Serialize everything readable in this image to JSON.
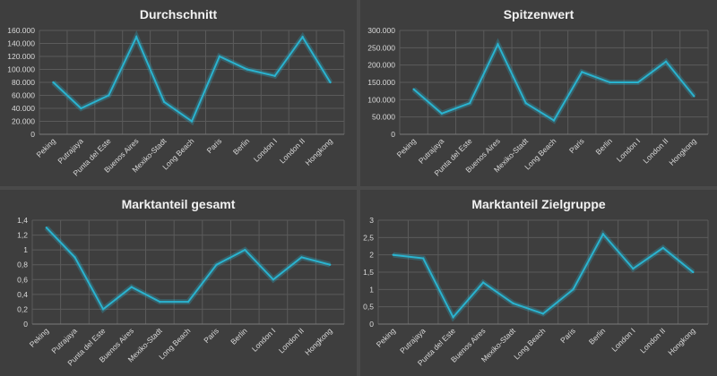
{
  "colors": {
    "line": "#2ab3cf",
    "background": "#3e3e3e",
    "grid": "#5b5b5b",
    "text": "#d9d9d9",
    "title": "#f2f2f2"
  },
  "chart_data": [
    {
      "type": "line",
      "title": "Durchschnitt",
      "categories": [
        "Peking",
        "Putrajaya",
        "Punta del Este",
        "Buenos Aires",
        "Mexiko-Stadt",
        "Long Beach",
        "Paris",
        "Berlin",
        "London I",
        "London II",
        "Hongkong"
      ],
      "series": [
        {
          "values": [
            80000,
            40000,
            60000,
            150000,
            50000,
            20000,
            120000,
            100000,
            90000,
            150000,
            80000
          ]
        }
      ],
      "ylim": [
        0,
        160000
      ],
      "yticks": [
        "0",
        "20.000",
        "40.000",
        "60.000",
        "80.000",
        "100.000",
        "120.000",
        "140.000",
        "160.000"
      ],
      "grid": true
    },
    {
      "type": "line",
      "title": "Spitzenwert",
      "categories": [
        "Peking",
        "Putrajaya",
        "Punta del Este",
        "Buenos Aires",
        "Mexiko-Stadt",
        "Long Beach",
        "Paris",
        "Berlin",
        "London I",
        "London II",
        "Hongkong"
      ],
      "series": [
        {
          "values": [
            130000,
            60000,
            90000,
            260000,
            90000,
            40000,
            180000,
            150000,
            150000,
            210000,
            110000
          ]
        }
      ],
      "ylim": [
        0,
        300000
      ],
      "yticks": [
        "0",
        "50.000",
        "100.000",
        "150.000",
        "200.000",
        "250.000",
        "300.000"
      ],
      "grid": true
    },
    {
      "type": "line",
      "title": "Marktanteil gesamt",
      "categories": [
        "Peking",
        "Putrajaya",
        "Punta del Este",
        "Buenos Aires",
        "Mexiko-Stadt",
        "Long Beach",
        "Paris",
        "Berlin",
        "London I",
        "London II",
        "Hongkong"
      ],
      "series": [
        {
          "values": [
            1.3,
            0.9,
            0.2,
            0.5,
            0.3,
            0.3,
            0.8,
            1.0,
            0.6,
            0.9,
            0.8
          ]
        }
      ],
      "ylim": [
        0,
        1.4
      ],
      "yticks": [
        "0",
        "0,2",
        "0,4",
        "0,6",
        "0,8",
        "1",
        "1,2",
        "1,4"
      ],
      "grid": true
    },
    {
      "type": "line",
      "title": "Marktanteil Zielgruppe",
      "categories": [
        "Peking",
        "Putrajaya",
        "Punta del Este",
        "Buenos Aires",
        "Mexiko-Stadt",
        "Long Beach",
        "Paris",
        "Berlin",
        "London I",
        "London II",
        "Hongkong"
      ],
      "series": [
        {
          "values": [
            2.0,
            1.9,
            0.2,
            1.2,
            0.6,
            0.3,
            1.0,
            2.6,
            1.6,
            2.2,
            1.5
          ]
        }
      ],
      "ylim": [
        0,
        3
      ],
      "yticks": [
        "0",
        "0,5",
        "1",
        "1,5",
        "2",
        "2,5",
        "3"
      ],
      "grid": true
    }
  ]
}
